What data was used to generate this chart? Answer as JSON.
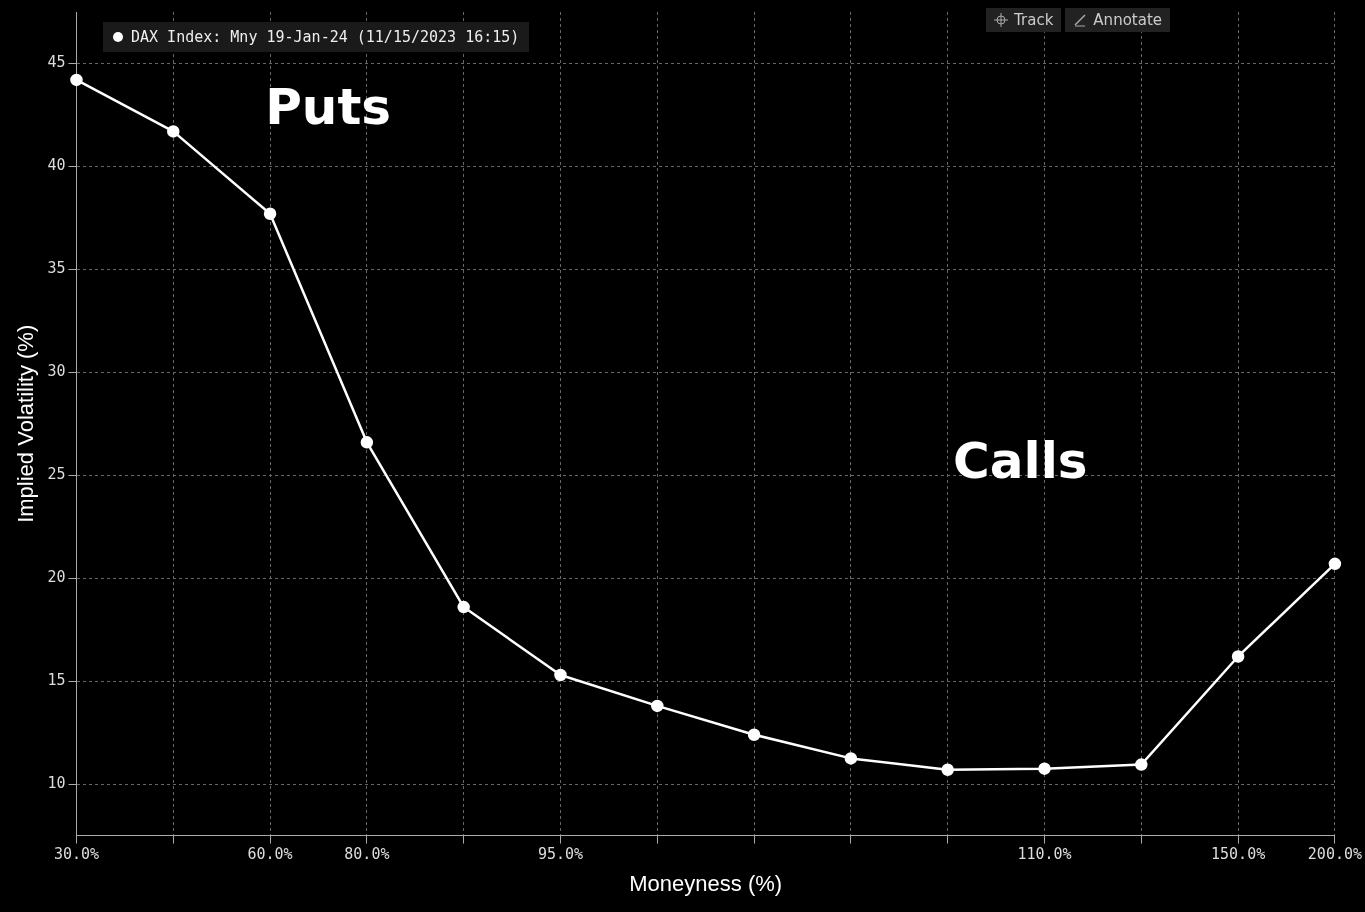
{
  "chart_data": {
    "type": "line",
    "xlabel": "Moneyness (%)",
    "ylabel": "Implied Volatility (%)",
    "categories": [
      "30.0%",
      null,
      "60.0%",
      "80.0%",
      null,
      "95.0%",
      null,
      null,
      null,
      null,
      "110.0%",
      null,
      "150.0%",
      "200.0%"
    ],
    "series": [
      {
        "name": "DAX Index: Mny 19-Jan-24 (11/15/2023 16:15)",
        "color": "#ffffff",
        "values": [
          44.2,
          41.7,
          37.7,
          26.6,
          18.6,
          15.3,
          13.8,
          12.4,
          11.25,
          10.7,
          10.75,
          10.95,
          16.2,
          20.7
        ]
      }
    ],
    "ylim": [
      7.5,
      47.5
    ],
    "yticks": [
      10,
      15,
      20,
      25,
      30,
      35,
      40,
      45
    ],
    "grid": true,
    "legend": "top left",
    "marker": "circle",
    "line_style": "solid",
    "annotations": [
      "Puts",
      "Calls",
      "Track",
      "Annotate"
    ]
  }
}
